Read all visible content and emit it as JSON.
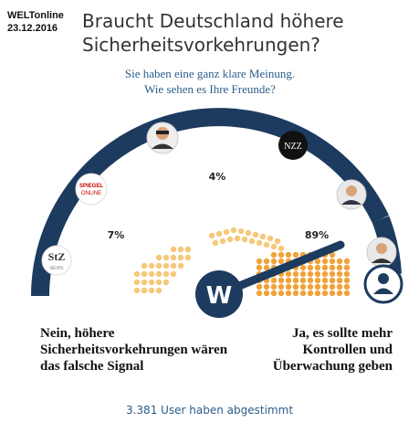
{
  "header": {
    "source": "WELTonline",
    "date": "23.12.2016",
    "title": "Braucht Deutschland höhere Sicherheitsvorkehrungen?",
    "subtitle_line1": "Sie haben eine ganz klare Meinung.",
    "subtitle_line2": "Wie sehen es Ihre Freunde?"
  },
  "gauge": {
    "outlets": [
      {
        "name": "StZ",
        "sub": "NEWS",
        "percent_label": "7%",
        "icon": "stz-logo"
      },
      {
        "name": "SPIEGEL",
        "sub": "ONLINE",
        "percent_label": "",
        "icon": "spiegel-logo"
      },
      {
        "name": "portrait",
        "sub": "",
        "percent_label": "4%",
        "icon": "person-portrait"
      },
      {
        "name": "NZZ",
        "sub": "",
        "percent_label": "",
        "icon": "nzz-logo"
      },
      {
        "name": "portrait",
        "sub": "",
        "percent_label": "",
        "icon": "person-portrait"
      },
      {
        "name": "portrait",
        "sub": "",
        "percent_label": "89%",
        "icon": "person-portrait"
      }
    ],
    "percent_left": "7%",
    "percent_middle": "4%",
    "percent_right": "89%",
    "needle_fraction": 0.89,
    "hub_letter": "W",
    "colors": {
      "arc": "#1d3b5f",
      "dots_left": "#f6c879",
      "dots_right": "#f0a33a",
      "hub": "#1d3b5f"
    }
  },
  "answers": {
    "no": "Nein, höhere Sicherheitsvorkehrungen wären das falsche Signal",
    "yes": "Ja, es sollte mehr Kontrollen und Überwachung geben"
  },
  "footer": {
    "votes": "3.381 User haben abgestimmt"
  }
}
